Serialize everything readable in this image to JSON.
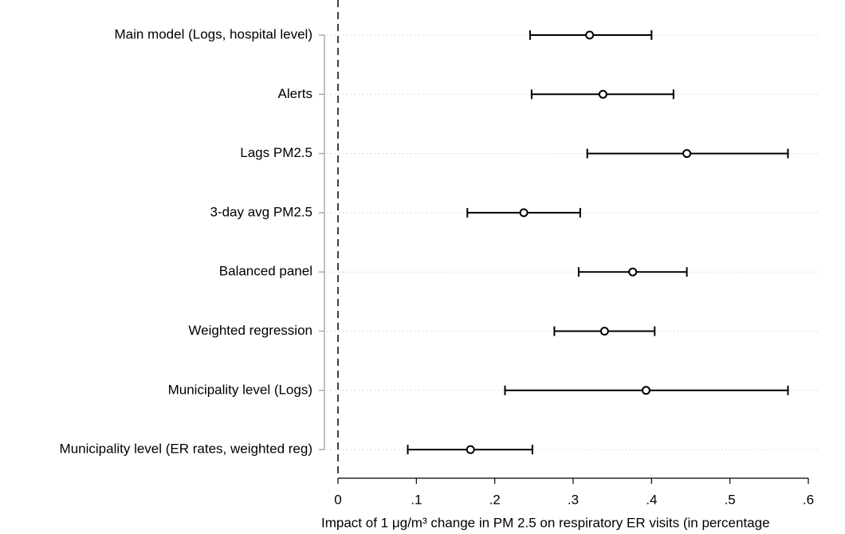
{
  "chart_data": {
    "type": "coefplot",
    "categories": [
      "Main model (Logs, hospital level)",
      "Alerts",
      "Lags PM2.5",
      "3-day avg PM2.5",
      "Balanced panel",
      "Weighted regression",
      "Municipality level (Logs)",
      "Municipality level (ER rates, weighted reg)"
    ],
    "values": [
      0.321,
      0.338,
      0.445,
      0.237,
      0.376,
      0.34,
      0.393,
      0.169
    ],
    "lower": [
      0.245,
      0.247,
      0.318,
      0.165,
      0.307,
      0.276,
      0.213,
      0.089
    ],
    "upper": [
      0.4,
      0.428,
      0.574,
      0.309,
      0.445,
      0.404,
      0.574,
      0.248
    ],
    "color": "#000000",
    "xlabel": "Impact of 1 μg/m³ change in PM 2.5 on respiratory ER visits (in percentage",
    "xlim": [
      0,
      0.6
    ],
    "xticks": [
      0,
      {
        "value": 0.1,
        "label": ".1"
      },
      {
        "value": 0.2,
        "label": ".2"
      },
      {
        "value": 0.3,
        "label": ".3"
      },
      {
        "value": 0.4,
        "label": ".4"
      },
      {
        "value": 0.5,
        "label": ".5"
      },
      {
        "value": 0.6,
        "label": ".6"
      }
    ],
    "reference_line": 0,
    "grid": true
  }
}
